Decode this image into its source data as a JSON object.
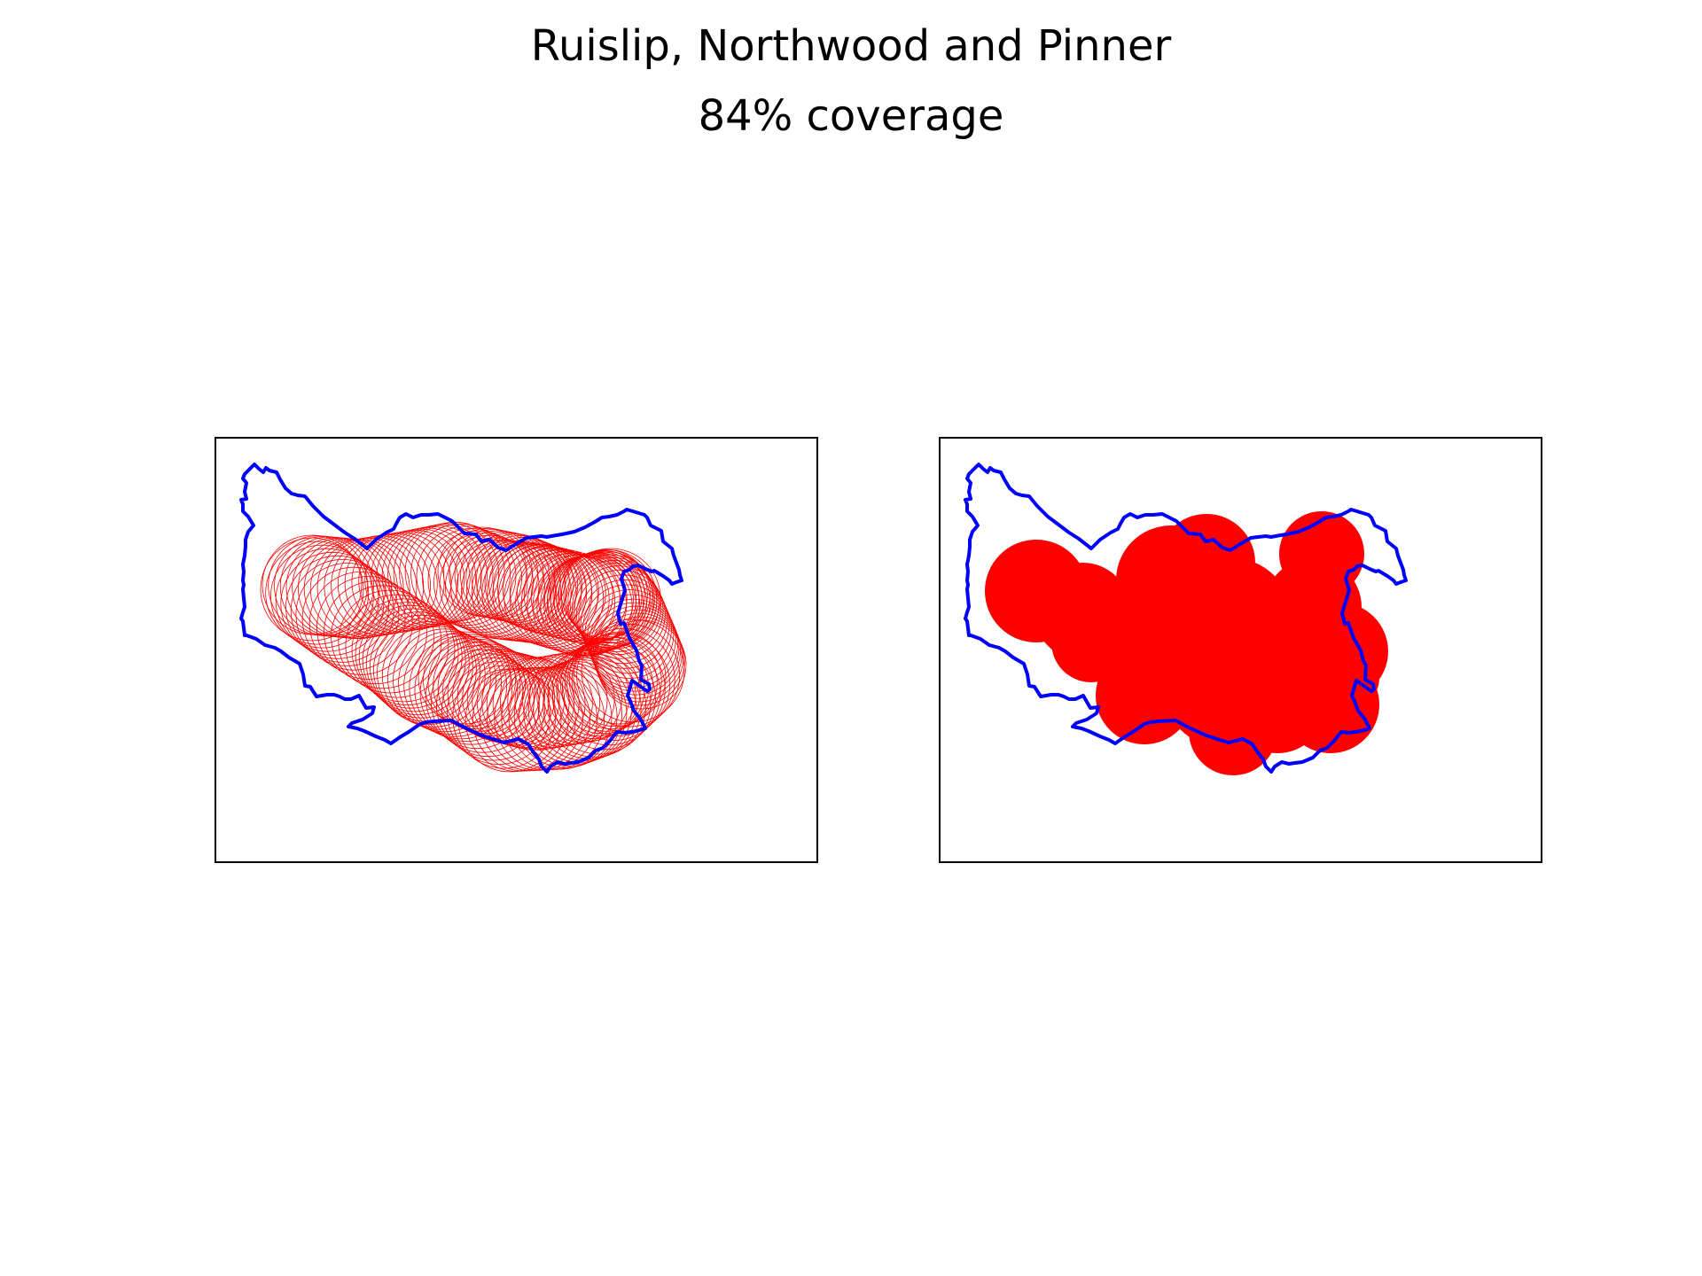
{
  "figure": {
    "title": "Ruislip, Northwood and Pinner",
    "subtitle": "84% coverage"
  },
  "colors": {
    "boundary": "#0000ff",
    "coverage": "#ff0000",
    "frame": "#000000"
  },
  "panels": [
    {
      "style": "circle-outlines"
    },
    {
      "style": "filled-union"
    }
  ]
}
